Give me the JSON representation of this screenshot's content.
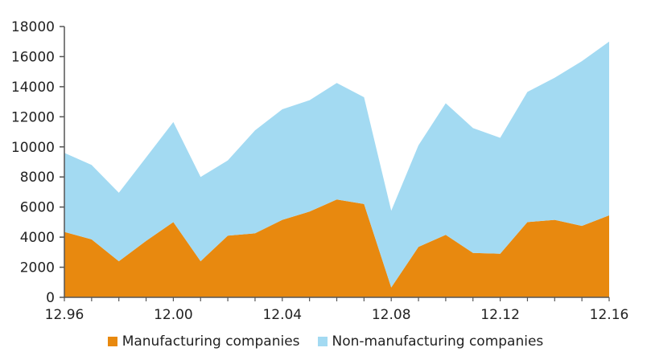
{
  "chart_data": {
    "type": "area",
    "stacked": true,
    "x": [
      1996,
      1997,
      1998,
      1999,
      2000,
      2001,
      2002,
      2003,
      2004,
      2005,
      2006,
      2007,
      2008,
      2009,
      2010,
      2011,
      2012,
      2013,
      2014,
      2015,
      2016
    ],
    "x_tick_labels": [
      "12.96",
      "12.00",
      "12.04",
      "12.08",
      "12.12",
      "12.16"
    ],
    "x_tick_values": [
      1996,
      2000,
      2004,
      2008,
      2012,
      2016
    ],
    "ylim": [
      0,
      18000
    ],
    "y_ticks": [
      0,
      2000,
      4000,
      6000,
      8000,
      10000,
      12000,
      14000,
      16000,
      18000
    ],
    "grid": false,
    "legend_position": "bottom",
    "series": [
      {
        "name": "Manufacturing companies",
        "color": "#e8890f",
        "values": [
          4350,
          3850,
          2400,
          3750,
          5000,
          2400,
          4100,
          4250,
          5150,
          5700,
          6500,
          6200,
          650,
          3350,
          4150,
          2950,
          2900,
          5000,
          5150,
          4750,
          5450
        ]
      },
      {
        "name": "Non-manufacturing companies",
        "color": "#a3daf2",
        "values": [
          5250,
          4950,
          4550,
          5550,
          6650,
          5600,
          5000,
          6850,
          7350,
          7400,
          7750,
          7100,
          5100,
          6750,
          8750,
          8300,
          7700,
          8650,
          9450,
          10950,
          11550
        ]
      }
    ]
  }
}
